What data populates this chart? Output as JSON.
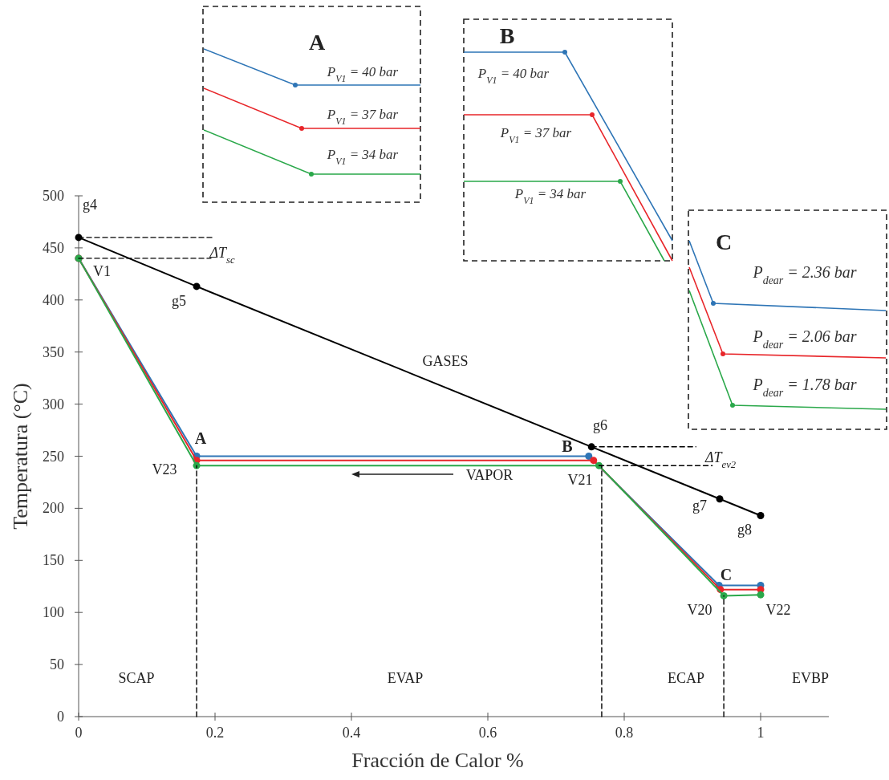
{
  "chart_data": [
    {
      "type": "line",
      "xlabel": "Fracción de Calor %",
      "ylabel": "Temperatura (°C)",
      "xlim": [
        0,
        1.1
      ],
      "ylim": [
        0,
        500
      ],
      "xticks": [
        0,
        0.2,
        0.4,
        0.6,
        0.8,
        1
      ],
      "yticks": [
        0,
        50,
        100,
        150,
        200,
        250,
        300,
        350,
        400,
        450,
        500
      ],
      "grid": false,
      "marker": "circle",
      "line_style": "solid",
      "series": [
        {
          "color": "#000000",
          "x": [
            0,
            0.173,
            0.752,
            0.94,
            1
          ],
          "values": [
            460,
            413,
            259,
            209,
            193
          ]
        },
        {
          "color": "#2e75b6",
          "x": [
            0,
            0.173,
            0.748,
            0.939,
            1
          ],
          "values": [
            440,
            250,
            250,
            126,
            126
          ]
        },
        {
          "color": "#e8262a",
          "x": [
            0,
            0.173,
            0.755,
            0.941,
            1
          ],
          "values": [
            440,
            246,
            246,
            122,
            122
          ]
        },
        {
          "color": "#2aa84a",
          "x": [
            0,
            0.173,
            0.763,
            0.946,
            1
          ],
          "values": [
            440,
            241,
            241,
            116,
            117
          ]
        },
        {
          "color": "#000000",
          "marker": "none",
          "line_style": "dashed",
          "x": [
            0,
            0.196
          ],
          "values": [
            460,
            460
          ]
        },
        {
          "color": "#000000",
          "marker": "none",
          "line_style": "dashed",
          "x": [
            0,
            0.194
          ],
          "values": [
            440,
            440
          ]
        },
        {
          "color": "#000000",
          "marker": "none",
          "line_style": "dashed",
          "x": [
            0.752,
            0.905
          ],
          "values": [
            259,
            259
          ]
        },
        {
          "color": "#000000",
          "marker": "none",
          "line_style": "dashed",
          "x": [
            0.763,
            0.929
          ],
          "values": [
            241,
            241
          ]
        },
        {
          "color": "#000000",
          "marker": "none",
          "line_style": "dashed",
          "x": [
            0.173,
            0.173
          ],
          "values": [
            0,
            241
          ]
        },
        {
          "color": "#000000",
          "marker": "none",
          "line_style": "dashed",
          "x": [
            0.767,
            0.767
          ],
          "values": [
            0,
            241
          ]
        },
        {
          "color": "#000000",
          "marker": "none",
          "line_style": "dashed",
          "x": [
            0.946,
            0.946
          ],
          "values": [
            0,
            116
          ]
        }
      ],
      "annotations": [
        "g4",
        "ΔT$_{sc}$",
        "V1",
        "g5",
        "A",
        "V23",
        "GASES",
        "VAPOR",
        "B",
        "g6",
        "ΔT$_{ev2}$",
        "V21",
        "g7",
        "g8",
        "C",
        "V20",
        "V22",
        "SCAP",
        "EVAP",
        "ECAP",
        "EVBP"
      ]
    },
    {
      "type": "other",
      "title": "A",
      "annotations": [
        "P$_{V1}$ = 40 bar",
        "P$_{V1}$ = 37 bar",
        "P$_{V1}$ = 34 bar"
      ]
    },
    {
      "type": "other",
      "title": "B",
      "annotations": [
        "P$_{V1}$ = 40 bar",
        "P$_{V1}$ = 37 bar",
        "P$_{V1}$ = 34 bar"
      ]
    },
    {
      "type": "other",
      "title": "C",
      "annotations": [
        "P$_{dear}$ = 2.36 bar",
        "P$_{dear}$ = 2.06 bar",
        "P$_{dear}$ = 1.78 bar"
      ]
    }
  ]
}
